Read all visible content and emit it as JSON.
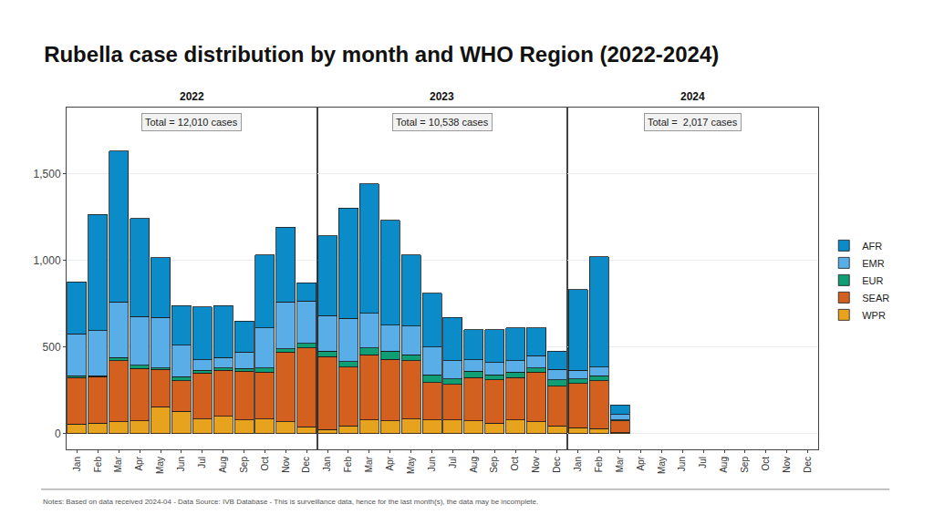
{
  "chart_data": {
    "type": "bar",
    "title": "Rubella case distribution by month and WHO Region (2022-2024)",
    "stacked": true,
    "grid": true,
    "legend": "right",
    "categories": [
      "Jan",
      "Feb",
      "Mar",
      "Apr",
      "May",
      "Jun",
      "Jul",
      "Aug",
      "Sep",
      "Oct",
      "Nov",
      "Dec"
    ],
    "ylim": [
      -90,
      1880
    ],
    "yticks": [
      0,
      500,
      {
        "value": 1000,
        "label": "1,000"
      },
      {
        "value": 1500,
        "label": "1,500"
      }
    ],
    "notes": "Notes: Based on data received 2024-04 - Data Source: IVB Database - This is surveillance data, hence for the last month(s), the data may be incomplete.",
    "facets": [
      {
        "title": "2022",
        "annotation": "Total = 12,010 cases",
        "series": [
          {
            "name": "WPR",
            "color": "#e8a31e",
            "values": [
              55,
              60,
              70,
              75,
              155,
              130,
              85,
              100,
              80,
              85,
              70,
              40
            ]
          },
          {
            "name": "SEAR",
            "color": "#d4601f",
            "values": [
              270,
              270,
              350,
              300,
              215,
              175,
              265,
              265,
              280,
              270,
              400,
              455
            ]
          },
          {
            "name": "EUR",
            "color": "#109e74",
            "values": [
              10,
              5,
              20,
              20,
              10,
              25,
              15,
              15,
              15,
              25,
              20,
              25
            ]
          },
          {
            "name": "EMR",
            "color": "#5aaee8",
            "values": [
              240,
              260,
              320,
              280,
              290,
              180,
              60,
              60,
              95,
              230,
              270,
              245
            ]
          },
          {
            "name": "AFR",
            "color": "#0b8bc8",
            "values": [
              300,
              670,
              870,
              565,
              345,
              230,
              305,
              300,
              180,
              420,
              430,
              105
            ]
          }
        ]
      },
      {
        "title": "2023",
        "annotation": "Total = 10,538 cases",
        "series": [
          {
            "name": "WPR",
            "color": "#e8a31e",
            "values": [
              25,
              45,
              80,
              75,
              85,
              80,
              80,
              75,
              60,
              80,
              70,
              45
            ]
          },
          {
            "name": "SEAR",
            "color": "#d4601f",
            "values": [
              420,
              340,
              375,
              355,
              335,
              215,
              205,
              250,
              250,
              245,
              285,
              230
            ]
          },
          {
            "name": "EUR",
            "color": "#109e74",
            "values": [
              30,
              30,
              40,
              45,
              35,
              45,
              30,
              35,
              30,
              30,
              25,
              35
            ]
          },
          {
            "name": "EMR",
            "color": "#5aaee8",
            "values": [
              205,
              250,
              200,
              150,
              165,
              160,
              105,
              65,
              70,
              65,
              70,
              60
            ]
          },
          {
            "name": "AFR",
            "color": "#0b8bc8",
            "values": [
              460,
              635,
              745,
              605,
              410,
              310,
              250,
              175,
              190,
              190,
              160,
              105
            ]
          }
        ]
      },
      {
        "title": "2024",
        "annotation": "Total =  2,017 cases",
        "series": [
          {
            "name": "WPR",
            "color": "#e8a31e",
            "values": [
              35,
              30,
              5,
              null,
              null,
              null,
              null,
              null,
              null,
              null,
              null,
              null
            ]
          },
          {
            "name": "SEAR",
            "color": "#d4601f",
            "values": [
              255,
              275,
              70,
              null,
              null,
              null,
              null,
              null,
              null,
              null,
              null,
              null
            ]
          },
          {
            "name": "EUR",
            "color": "#109e74",
            "values": [
              25,
              30,
              5,
              null,
              null,
              null,
              null,
              null,
              null,
              null,
              null,
              null
            ]
          },
          {
            "name": "EMR",
            "color": "#5aaee8",
            "values": [
              50,
              50,
              30,
              null,
              null,
              null,
              null,
              null,
              null,
              null,
              null,
              null
            ]
          },
          {
            "name": "AFR",
            "color": "#0b8bc8",
            "values": [
              465,
              635,
              55,
              null,
              null,
              null,
              null,
              null,
              null,
              null,
              null,
              null
            ]
          }
        ]
      }
    ]
  }
}
